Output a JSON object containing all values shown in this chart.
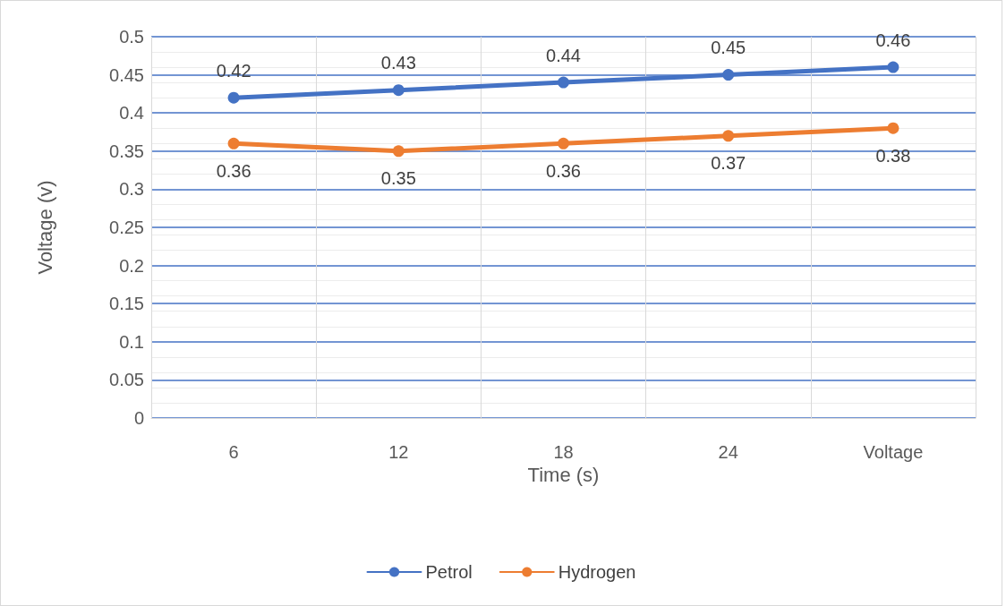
{
  "chart_data": {
    "type": "line",
    "xlabel": "Time (s)",
    "ylabel": "Voltage (v)",
    "categories": [
      "6",
      "12",
      "18",
      "24",
      "Voltage"
    ],
    "series": [
      {
        "name": "Petrol",
        "color": "#4472c4",
        "values": [
          0.42,
          0.43,
          0.44,
          0.45,
          0.46
        ]
      },
      {
        "name": "Hydrogen",
        "color": "#ed7d31",
        "values": [
          0.36,
          0.35,
          0.36,
          0.37,
          0.38
        ]
      }
    ],
    "ylim": [
      0,
      0.5
    ],
    "yticks": [
      0,
      0.05,
      0.1,
      0.15,
      0.2,
      0.25,
      0.3,
      0.35,
      0.4,
      0.45,
      0.5
    ],
    "grid": true,
    "legend": "bottom",
    "marker": "circle",
    "line_style": "solid",
    "data_labels": true
  }
}
